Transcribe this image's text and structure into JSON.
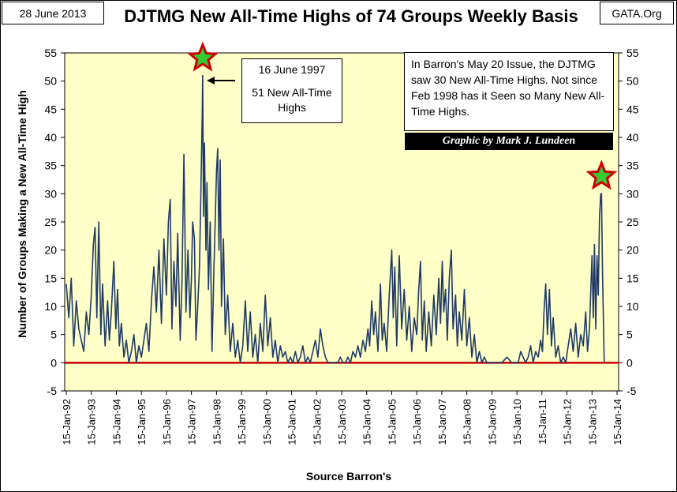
{
  "header": {
    "date": "28 June 2013",
    "source": "GATA.Org"
  },
  "annotations": {
    "peak_date": "16 June 1997",
    "peak_text": "51 New All-Time Highs",
    "note": "In Barron's May 20 Issue, the DJTMG saw 30 New All-Time Highs.   Not since Feb 1998 has it Seen so Many New All-Time Highs.",
    "credit": "Graphic by Mark J. Lundeen"
  },
  "colors": {
    "plot_bg": "#ffffc8",
    "series": "#1f3a66",
    "zero_line": "#cc0000",
    "star_fill": "#33cc33",
    "star_stroke": "#cc0000"
  },
  "chart_data": {
    "type": "line",
    "title": "DJTMG New All-Time Highs of 74 Groups Weekly Basis",
    "xlabel": "Source Barron's",
    "ylabel": "Number of Groups Making a New All-Time High",
    "ylim": [
      -5,
      55
    ],
    "yticks": [
      -5,
      0,
      5,
      10,
      15,
      20,
      25,
      30,
      35,
      40,
      45,
      50,
      55
    ],
    "xticks": [
      "15-Jan-92",
      "15-Jan-93",
      "15-Jan-94",
      "15-Jan-95",
      "15-Jan-96",
      "15-Jan-97",
      "15-Jan-98",
      "15-Jan-99",
      "15-Jan-00",
      "15-Jan-01",
      "15-Jan-02",
      "15-Jan-03",
      "15-Jan-04",
      "15-Jan-05",
      "15-Jan-06",
      "15-Jan-07",
      "15-Jan-08",
      "15-Jan-09",
      "15-Jan-10",
      "15-Jan-11",
      "15-Jan-12",
      "15-Jan-13",
      "15-Jan-14"
    ],
    "xlim": [
      1992.0,
      2014.0
    ],
    "grid": false,
    "legend": "none",
    "markers": [
      {
        "x": 1997.45,
        "y": 51
      },
      {
        "x": 2013.38,
        "y": 30
      }
    ],
    "series": [
      {
        "points": [
          [
            1992.0,
            14
          ],
          [
            1992.1,
            8
          ],
          [
            1992.2,
            15
          ],
          [
            1992.3,
            3
          ],
          [
            1992.4,
            11
          ],
          [
            1992.5,
            6
          ],
          [
            1992.6,
            4
          ],
          [
            1992.7,
            2
          ],
          [
            1992.8,
            9
          ],
          [
            1992.9,
            5
          ],
          [
            1993.0,
            12
          ],
          [
            1993.08,
            21
          ],
          [
            1993.15,
            24
          ],
          [
            1993.22,
            8
          ],
          [
            1993.3,
            25
          ],
          [
            1993.38,
            5
          ],
          [
            1993.45,
            14
          ],
          [
            1993.55,
            3
          ],
          [
            1993.65,
            11
          ],
          [
            1993.72,
            4
          ],
          [
            1993.8,
            9
          ],
          [
            1993.9,
            18
          ],
          [
            1993.98,
            6
          ],
          [
            1994.05,
            13
          ],
          [
            1994.12,
            3
          ],
          [
            1994.2,
            7
          ],
          [
            1994.3,
            1
          ],
          [
            1994.4,
            4
          ],
          [
            1994.5,
            0
          ],
          [
            1994.6,
            2
          ],
          [
            1994.7,
            5
          ],
          [
            1994.8,
            0
          ],
          [
            1994.9,
            3
          ],
          [
            1995.0,
            1
          ],
          [
            1995.1,
            4
          ],
          [
            1995.2,
            7
          ],
          [
            1995.3,
            2
          ],
          [
            1995.4,
            11
          ],
          [
            1995.5,
            17
          ],
          [
            1995.6,
            9
          ],
          [
            1995.7,
            20
          ],
          [
            1995.8,
            7
          ],
          [
            1995.9,
            22
          ],
          [
            1996.0,
            12
          ],
          [
            1996.08,
            25
          ],
          [
            1996.15,
            29
          ],
          [
            1996.22,
            6
          ],
          [
            1996.3,
            18
          ],
          [
            1996.38,
            10
          ],
          [
            1996.45,
            23
          ],
          [
            1996.55,
            4
          ],
          [
            1996.62,
            14
          ],
          [
            1996.7,
            37
          ],
          [
            1996.78,
            9
          ],
          [
            1996.86,
            20
          ],
          [
            1996.94,
            8
          ],
          [
            1997.0,
            15
          ],
          [
            1997.05,
            25
          ],
          [
            1997.12,
            22
          ],
          [
            1997.18,
            4
          ],
          [
            1997.25,
            10
          ],
          [
            1997.32,
            17
          ],
          [
            1997.38,
            31
          ],
          [
            1997.43,
            44
          ],
          [
            1997.45,
            51
          ],
          [
            1997.48,
            26
          ],
          [
            1997.52,
            39
          ],
          [
            1997.58,
            20
          ],
          [
            1997.62,
            32
          ],
          [
            1997.68,
            13
          ],
          [
            1997.75,
            25
          ],
          [
            1997.82,
            2
          ],
          [
            1997.9,
            17
          ],
          [
            1998.0,
            34
          ],
          [
            1998.05,
            38
          ],
          [
            1998.1,
            20
          ],
          [
            1998.15,
            36
          ],
          [
            1998.2,
            10
          ],
          [
            1998.28,
            22
          ],
          [
            1998.35,
            5
          ],
          [
            1998.45,
            12
          ],
          [
            1998.55,
            2
          ],
          [
            1998.65,
            7
          ],
          [
            1998.75,
            1
          ],
          [
            1998.85,
            4
          ],
          [
            1998.95,
            0
          ],
          [
            1999.05,
            3
          ],
          [
            1999.15,
            11
          ],
          [
            1999.25,
            2
          ],
          [
            1999.35,
            9
          ],
          [
            1999.45,
            1
          ],
          [
            1999.55,
            5
          ],
          [
            1999.65,
            0
          ],
          [
            1999.75,
            7
          ],
          [
            1999.85,
            2
          ],
          [
            1999.95,
            12
          ],
          [
            2000.05,
            3
          ],
          [
            2000.15,
            8
          ],
          [
            2000.25,
            1
          ],
          [
            2000.35,
            4
          ],
          [
            2000.45,
            0
          ],
          [
            2000.55,
            3
          ],
          [
            2000.65,
            1
          ],
          [
            2000.75,
            2
          ],
          [
            2000.85,
            0
          ],
          [
            2000.95,
            1
          ],
          [
            2001.05,
            0
          ],
          [
            2001.15,
            2
          ],
          [
            2001.25,
            0
          ],
          [
            2001.35,
            1
          ],
          [
            2001.45,
            3
          ],
          [
            2001.55,
            0
          ],
          [
            2001.65,
            1
          ],
          [
            2001.75,
            0
          ],
          [
            2001.85,
            2
          ],
          [
            2001.95,
            4
          ],
          [
            2002.05,
            1
          ],
          [
            2002.15,
            6
          ],
          [
            2002.25,
            3
          ],
          [
            2002.35,
            1
          ],
          [
            2002.45,
            0
          ],
          [
            2002.55,
            0
          ],
          [
            2002.65,
            0
          ],
          [
            2002.75,
            0
          ],
          [
            2002.85,
            0
          ],
          [
            2002.95,
            1
          ],
          [
            2003.05,
            0
          ],
          [
            2003.15,
            0
          ],
          [
            2003.25,
            1
          ],
          [
            2003.35,
            0
          ],
          [
            2003.45,
            2
          ],
          [
            2003.55,
            1
          ],
          [
            2003.65,
            3
          ],
          [
            2003.75,
            1
          ],
          [
            2003.85,
            4
          ],
          [
            2003.95,
            2
          ],
          [
            2004.05,
            6
          ],
          [
            2004.12,
            3
          ],
          [
            2004.2,
            11
          ],
          [
            2004.28,
            5
          ],
          [
            2004.35,
            9
          ],
          [
            2004.45,
            2
          ],
          [
            2004.55,
            14
          ],
          [
            2004.62,
            4
          ],
          [
            2004.7,
            7
          ],
          [
            2004.8,
            2
          ],
          [
            2004.9,
            12
          ],
          [
            2005.0,
            20
          ],
          [
            2005.06,
            8
          ],
          [
            2005.12,
            17
          ],
          [
            2005.2,
            3
          ],
          [
            2005.3,
            19
          ],
          [
            2005.4,
            6
          ],
          [
            2005.5,
            13
          ],
          [
            2005.6,
            4
          ],
          [
            2005.7,
            10
          ],
          [
            2005.8,
            2
          ],
          [
            2005.9,
            8
          ],
          [
            2006.0,
            5
          ],
          [
            2006.08,
            13
          ],
          [
            2006.15,
            18
          ],
          [
            2006.22,
            4
          ],
          [
            2006.3,
            11
          ],
          [
            2006.38,
            2
          ],
          [
            2006.48,
            9
          ],
          [
            2006.58,
            3
          ],
          [
            2006.68,
            12
          ],
          [
            2006.78,
            5
          ],
          [
            2006.88,
            15
          ],
          [
            2006.95,
            7
          ],
          [
            2007.02,
            18
          ],
          [
            2007.08,
            9
          ],
          [
            2007.15,
            13
          ],
          [
            2007.22,
            4
          ],
          [
            2007.3,
            15
          ],
          [
            2007.38,
            20
          ],
          [
            2007.45,
            6
          ],
          [
            2007.55,
            12
          ],
          [
            2007.62,
            3
          ],
          [
            2007.7,
            9
          ],
          [
            2007.8,
            4
          ],
          [
            2007.9,
            13
          ],
          [
            2008.0,
            3
          ],
          [
            2008.1,
            8
          ],
          [
            2008.2,
            1
          ],
          [
            2008.3,
            5
          ],
          [
            2008.4,
            0
          ],
          [
            2008.5,
            2
          ],
          [
            2008.6,
            0
          ],
          [
            2008.7,
            1
          ],
          [
            2008.8,
            0
          ],
          [
            2008.9,
            0
          ],
          [
            2009.0,
            0
          ],
          [
            2009.2,
            0
          ],
          [
            2009.4,
            0
          ],
          [
            2009.6,
            1
          ],
          [
            2009.8,
            0
          ],
          [
            2009.95,
            0
          ],
          [
            2010.05,
            0
          ],
          [
            2010.15,
            2
          ],
          [
            2010.25,
            1
          ],
          [
            2010.35,
            0
          ],
          [
            2010.45,
            1
          ],
          [
            2010.55,
            3
          ],
          [
            2010.65,
            0
          ],
          [
            2010.75,
            2
          ],
          [
            2010.85,
            1
          ],
          [
            2010.95,
            4
          ],
          [
            2011.02,
            2
          ],
          [
            2011.08,
            9
          ],
          [
            2011.15,
            14
          ],
          [
            2011.22,
            5
          ],
          [
            2011.3,
            13
          ],
          [
            2011.38,
            3
          ],
          [
            2011.45,
            8
          ],
          [
            2011.55,
            1
          ],
          [
            2011.65,
            3
          ],
          [
            2011.75,
            0
          ],
          [
            2011.85,
            1
          ],
          [
            2011.95,
            0
          ],
          [
            2012.05,
            3
          ],
          [
            2012.15,
            6
          ],
          [
            2012.25,
            2
          ],
          [
            2012.35,
            7
          ],
          [
            2012.45,
            1
          ],
          [
            2012.55,
            5
          ],
          [
            2012.65,
            3
          ],
          [
            2012.75,
            9
          ],
          [
            2012.82,
            2
          ],
          [
            2012.9,
            6
          ],
          [
            2012.96,
            14
          ],
          [
            2013.0,
            19
          ],
          [
            2013.05,
            8
          ],
          [
            2013.1,
            21
          ],
          [
            2013.15,
            6
          ],
          [
            2013.2,
            19
          ],
          [
            2013.25,
            12
          ],
          [
            2013.3,
            26
          ],
          [
            2013.35,
            30
          ],
          [
            2013.38,
            30
          ],
          [
            2013.42,
            16
          ],
          [
            2013.47,
            4
          ],
          [
            2013.49,
            0
          ]
        ]
      }
    ]
  }
}
